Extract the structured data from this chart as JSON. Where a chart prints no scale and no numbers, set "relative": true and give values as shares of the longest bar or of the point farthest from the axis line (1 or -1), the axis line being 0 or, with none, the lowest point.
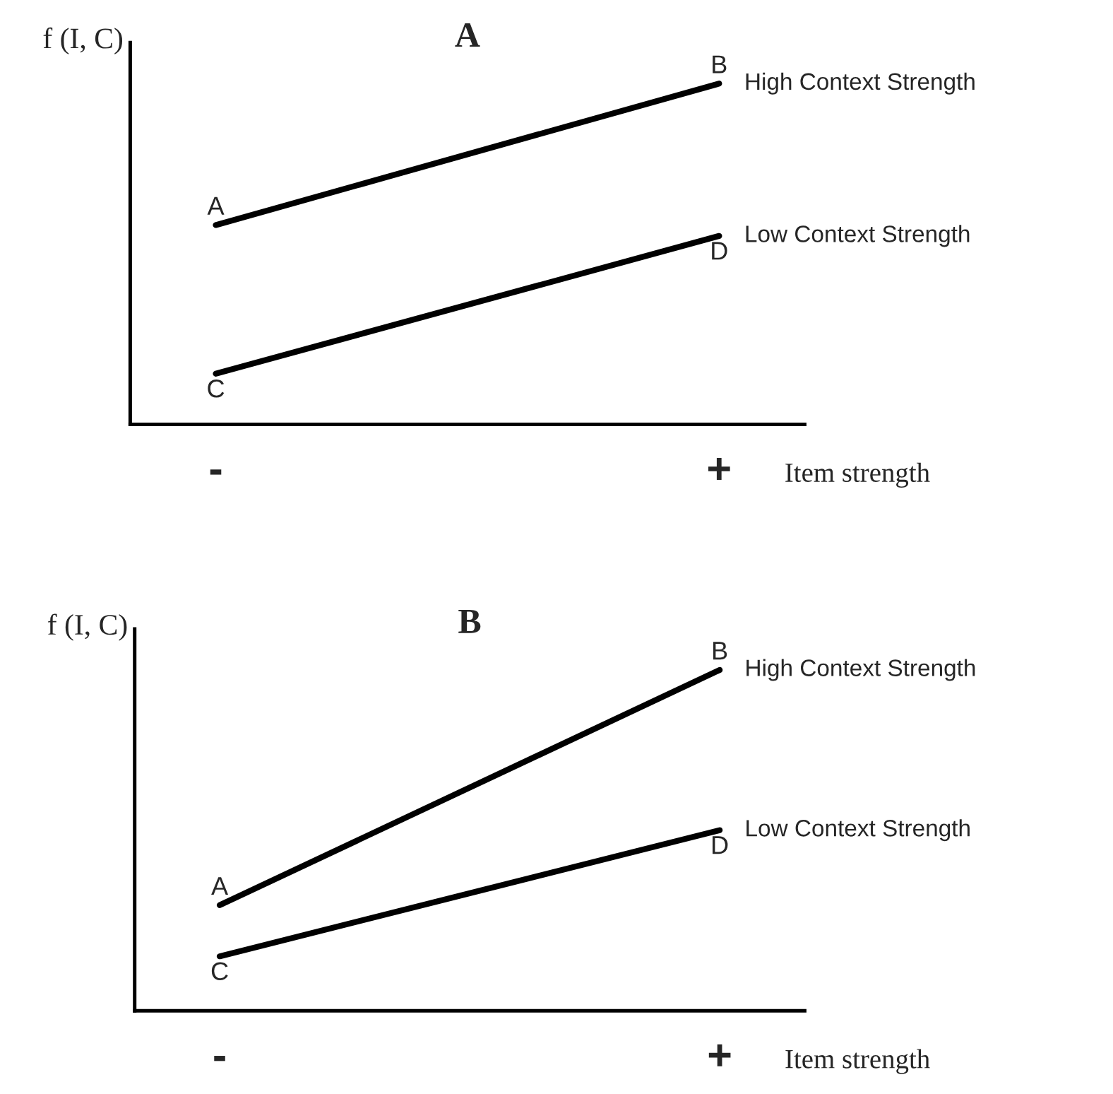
{
  "chart_data": [
    {
      "type": "line",
      "title": "A",
      "xlabel": "Item strength",
      "ylabel": "f (I, C)",
      "relative": true,
      "categories": [
        "-",
        "+"
      ],
      "grid": false,
      "legend": false,
      "marker": "none",
      "line_style": "solid",
      "series": [
        {
          "name": "High Context Strength",
          "color": "#000000",
          "values": [
            0.585,
            1
          ]
        },
        {
          "name": "Low Context Strength",
          "color": "#000000",
          "values": [
            0.149,
            0.553
          ]
        }
      ],
      "annotations": [
        "A",
        "B",
        "C",
        "D"
      ]
    },
    {
      "type": "line",
      "title": "B",
      "xlabel": "Item strength",
      "ylabel": "f (I, C)",
      "relative": true,
      "categories": [
        "-",
        "+"
      ],
      "grid": false,
      "legend": false,
      "marker": "none",
      "line_style": "solid",
      "series": [
        {
          "name": "High Context Strength",
          "color": "#000000",
          "values": [
            0.31,
            1
          ]
        },
        {
          "name": "Low Context Strength",
          "color": "#000000",
          "values": [
            0.16,
            0.53
          ]
        }
      ],
      "annotations": [
        "A",
        "B",
        "C",
        "D"
      ]
    }
  ]
}
